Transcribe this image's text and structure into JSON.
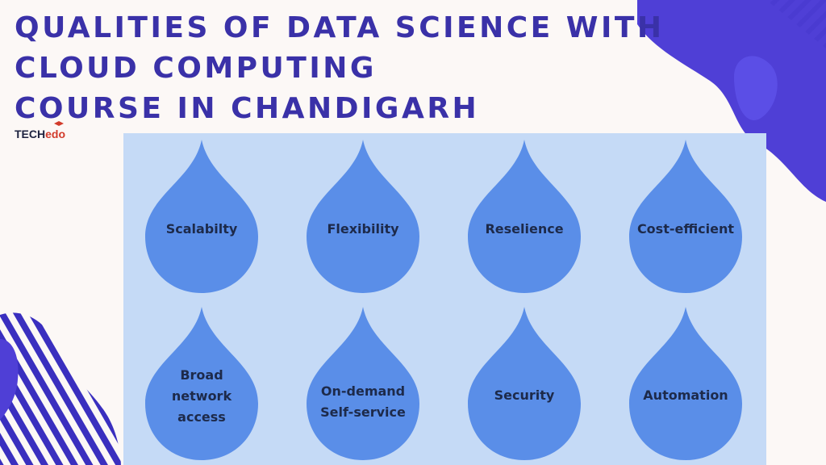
{
  "title": {
    "line1": "QUALITIES OF DATA SCIENCE WITH",
    "line2": "CLOUD COMPUTING",
    "line3": "COURSE IN CHANDIGARH"
  },
  "logo": {
    "part1": "TECH",
    "part2": "edo"
  },
  "colors": {
    "title": "#3a31a8",
    "panel": "#c5daf6",
    "drop": "#5a8ee8",
    "deco_purple": "#4f3fd6"
  },
  "qualities": [
    {
      "label": "Scalabilty"
    },
    {
      "label": "Flexibility"
    },
    {
      "label": "Reselience"
    },
    {
      "label": "Cost-efficient"
    },
    {
      "label": "Broad\nnetwork\naccess"
    },
    {
      "label": "On-demand\nSelf-service"
    },
    {
      "label": "Security"
    },
    {
      "label": "Automation"
    }
  ]
}
